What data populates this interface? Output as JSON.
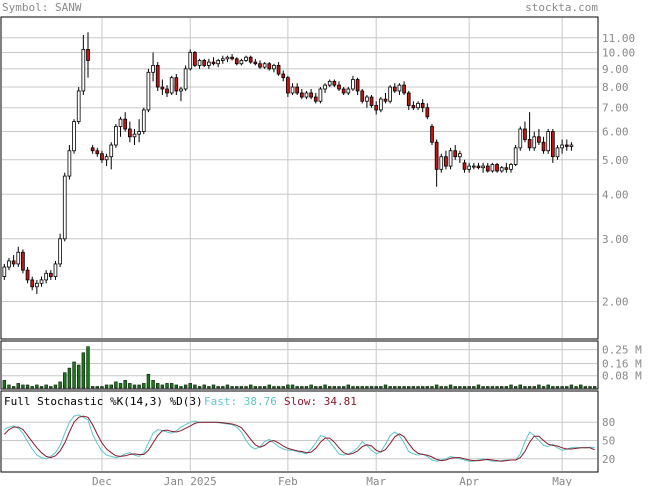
{
  "header": {
    "symbol_label": "Symbol: SANW",
    "brand": "stockta.com"
  },
  "colors": {
    "up": "#ffffff",
    "down": "#cc1111",
    "volume": "#1a7a1a",
    "fast": "#5bc8c8",
    "slow": "#8b1a2b",
    "grid": "#c8c8c8",
    "axis_text": "#888888"
  },
  "price_panel": {
    "scale": "log",
    "yticks": [
      "11.00",
      "10.00",
      "9.00",
      "8.00",
      "7.00",
      "6.00",
      "5.00",
      "4.00",
      "3.00",
      "2.00"
    ],
    "yvalues": [
      11,
      10,
      9,
      8,
      7,
      6,
      5,
      4,
      3,
      2
    ],
    "ylim": [
      1.58,
      12.5
    ]
  },
  "volume_panel": {
    "yticks": [
      "0.25 M",
      "0.16 M",
      "0.08 M"
    ],
    "yvalues": [
      0.25,
      0.16,
      0.08
    ],
    "ylim": [
      0,
      0.3
    ]
  },
  "stoch_panel": {
    "title": "Full Stochastic %K(14,3) %D(3)",
    "fast_label": "Fast: 38.76",
    "slow_label": "Slow: 34.81",
    "yticks": [
      "80",
      "50",
      "20"
    ],
    "yvalues": [
      80,
      50,
      20
    ],
    "ylim": [
      0,
      100
    ]
  },
  "x_axis": {
    "labels": [
      "Dec",
      "Jan 2025",
      "Feb",
      "Mar",
      "Apr",
      "May"
    ],
    "positions": [
      21,
      40,
      61,
      80,
      100,
      120
    ]
  },
  "chart_data": {
    "type": "candlestick",
    "n": 128,
    "candles": [
      [
        2.35,
        2.55,
        2.3,
        2.5
      ],
      [
        2.5,
        2.65,
        2.45,
        2.6
      ],
      [
        2.6,
        2.7,
        2.5,
        2.55
      ],
      [
        2.55,
        2.85,
        2.5,
        2.75
      ],
      [
        2.75,
        2.8,
        2.4,
        2.45
      ],
      [
        2.45,
        2.5,
        2.25,
        2.3
      ],
      [
        2.3,
        2.35,
        2.15,
        2.2
      ],
      [
        2.2,
        2.3,
        2.1,
        2.25
      ],
      [
        2.25,
        2.35,
        2.2,
        2.3
      ],
      [
        2.3,
        2.45,
        2.25,
        2.4
      ],
      [
        2.4,
        2.45,
        2.3,
        2.35
      ],
      [
        2.35,
        2.6,
        2.3,
        2.55
      ],
      [
        2.55,
        3.1,
        2.5,
        3.0
      ],
      [
        3.0,
        4.6,
        2.95,
        4.5
      ],
      [
        4.5,
        5.5,
        4.4,
        5.3
      ],
      [
        5.3,
        6.5,
        5.2,
        6.4
      ],
      [
        6.4,
        8.0,
        6.3,
        7.8
      ],
      [
        7.8,
        11.2,
        7.6,
        10.2
      ],
      [
        10.2,
        11.4,
        8.5,
        9.5
      ],
      [
        5.4,
        5.5,
        5.2,
        5.3
      ],
      [
        5.3,
        5.4,
        5.1,
        5.2
      ],
      [
        5.2,
        5.3,
        4.9,
        5.0
      ],
      [
        5.0,
        5.2,
        4.8,
        5.1
      ],
      [
        5.1,
        5.6,
        4.7,
        5.5
      ],
      [
        5.5,
        6.3,
        5.4,
        6.2
      ],
      [
        6.2,
        6.6,
        5.8,
        6.5
      ],
      [
        6.5,
        6.8,
        6.0,
        6.1
      ],
      [
        6.1,
        6.4,
        5.6,
        5.8
      ],
      [
        5.8,
        6.1,
        5.5,
        5.9
      ],
      [
        5.9,
        6.5,
        5.6,
        6.0
      ],
      [
        6.0,
        7.0,
        5.9,
        6.9
      ],
      [
        6.9,
        9.0,
        6.8,
        8.8
      ],
      [
        8.8,
        10.0,
        8.3,
        9.2
      ],
      [
        9.2,
        9.4,
        7.8,
        8.0
      ],
      [
        8.0,
        8.4,
        7.6,
        7.9
      ],
      [
        7.9,
        8.1,
        7.5,
        7.7
      ],
      [
        7.7,
        8.6,
        7.6,
        8.5
      ],
      [
        8.5,
        8.7,
        7.6,
        7.8
      ],
      [
        7.8,
        8.0,
        7.3,
        7.9
      ],
      [
        7.9,
        9.2,
        7.8,
        9.0
      ],
      [
        9.0,
        10.2,
        8.9,
        10.0
      ],
      [
        10.0,
        10.1,
        9.1,
        9.2
      ],
      [
        9.2,
        9.6,
        9.0,
        9.5
      ],
      [
        9.5,
        9.6,
        9.1,
        9.2
      ],
      [
        9.2,
        9.6,
        9.0,
        9.4
      ],
      [
        9.4,
        9.7,
        9.2,
        9.3
      ],
      [
        9.3,
        9.6,
        9.1,
        9.5
      ],
      [
        9.5,
        9.8,
        9.3,
        9.6
      ],
      [
        9.6,
        9.8,
        9.4,
        9.7
      ],
      [
        9.7,
        9.9,
        9.5,
        9.6
      ],
      [
        9.6,
        9.7,
        9.2,
        9.3
      ],
      [
        9.3,
        9.6,
        9.2,
        9.5
      ],
      [
        9.5,
        9.8,
        9.4,
        9.7
      ],
      [
        9.7,
        9.8,
        9.3,
        9.4
      ],
      [
        9.4,
        9.6,
        9.2,
        9.3
      ],
      [
        9.3,
        9.5,
        9.0,
        9.1
      ],
      [
        9.1,
        9.4,
        9.0,
        9.3
      ],
      [
        9.3,
        9.4,
        8.9,
        9.0
      ],
      [
        9.0,
        9.3,
        8.8,
        9.2
      ],
      [
        9.2,
        9.4,
        8.6,
        8.7
      ],
      [
        8.7,
        8.9,
        8.3,
        8.5
      ],
      [
        8.5,
        8.6,
        7.5,
        7.7
      ],
      [
        7.7,
        8.2,
        7.6,
        8.0
      ],
      [
        8.0,
        8.2,
        7.6,
        7.7
      ],
      [
        7.7,
        7.9,
        7.4,
        7.5
      ],
      [
        7.5,
        7.8,
        7.4,
        7.7
      ],
      [
        7.7,
        7.9,
        7.4,
        7.5
      ],
      [
        7.5,
        7.7,
        7.2,
        7.3
      ],
      [
        7.3,
        8.0,
        7.2,
        7.9
      ],
      [
        7.9,
        8.2,
        7.7,
        8.1
      ],
      [
        8.1,
        8.4,
        8.0,
        8.3
      ],
      [
        8.3,
        8.4,
        8.0,
        8.1
      ],
      [
        8.1,
        8.3,
        7.8,
        7.9
      ],
      [
        7.9,
        8.0,
        7.6,
        7.7
      ],
      [
        7.7,
        8.0,
        7.6,
        7.9
      ],
      [
        7.9,
        8.6,
        7.8,
        8.4
      ],
      [
        8.4,
        8.5,
        7.6,
        7.8
      ],
      [
        7.8,
        7.9,
        7.2,
        7.3
      ],
      [
        7.3,
        7.6,
        7.0,
        7.5
      ],
      [
        7.5,
        7.6,
        7.0,
        7.1
      ],
      [
        7.1,
        7.3,
        6.7,
        6.9
      ],
      [
        6.9,
        7.5,
        6.8,
        7.4
      ],
      [
        7.4,
        7.7,
        7.2,
        7.3
      ],
      [
        7.3,
        8.1,
        7.2,
        8.0
      ],
      [
        8.0,
        8.2,
        7.7,
        7.8
      ],
      [
        7.8,
        8.2,
        7.6,
        8.1
      ],
      [
        8.1,
        8.3,
        7.6,
        7.7
      ],
      [
        7.7,
        7.8,
        6.9,
        7.1
      ],
      [
        7.1,
        7.3,
        6.9,
        7.0
      ],
      [
        7.0,
        7.3,
        6.9,
        7.2
      ],
      [
        7.2,
        7.4,
        6.8,
        7.0
      ],
      [
        7.0,
        7.2,
        6.5,
        6.6
      ],
      [
        6.2,
        6.3,
        5.5,
        5.6
      ],
      [
        5.6,
        5.7,
        4.2,
        4.7
      ],
      [
        4.7,
        5.2,
        4.6,
        5.1
      ],
      [
        5.1,
        5.3,
        4.7,
        4.8
      ],
      [
        4.8,
        5.4,
        4.7,
        5.3
      ],
      [
        5.3,
        5.5,
        5.0,
        5.1
      ],
      [
        5.1,
        5.3,
        4.9,
        5.2
      ],
      [
        4.9,
        5.0,
        4.6,
        4.7
      ],
      [
        4.7,
        4.9,
        4.6,
        4.8
      ],
      [
        4.8,
        4.9,
        4.7,
        4.8
      ],
      [
        4.8,
        4.9,
        4.7,
        4.75
      ],
      [
        4.75,
        4.9,
        4.6,
        4.8
      ],
      [
        4.8,
        4.9,
        4.6,
        4.65
      ],
      [
        4.65,
        4.9,
        4.6,
        4.85
      ],
      [
        4.85,
        4.9,
        4.6,
        4.65
      ],
      [
        4.65,
        4.8,
        4.6,
        4.75
      ],
      [
        4.75,
        4.9,
        4.6,
        4.7
      ],
      [
        4.7,
        4.9,
        4.6,
        4.85
      ],
      [
        4.85,
        5.5,
        4.8,
        5.4
      ],
      [
        5.4,
        6.2,
        5.3,
        6.1
      ],
      [
        6.1,
        6.4,
        5.6,
        5.7
      ],
      [
        5.7,
        6.8,
        5.3,
        5.4
      ],
      [
        5.4,
        6.0,
        5.3,
        5.8
      ],
      [
        5.8,
        6.1,
        5.5,
        5.6
      ],
      [
        5.6,
        5.8,
        5.2,
        5.3
      ],
      [
        5.3,
        6.1,
        5.2,
        6.0
      ],
      [
        6.0,
        6.1,
        4.9,
        5.1
      ],
      [
        5.1,
        5.5,
        5.0,
        5.4
      ],
      [
        5.4,
        5.7,
        5.2,
        5.5
      ],
      [
        5.5,
        5.7,
        5.3,
        5.45
      ],
      [
        5.45,
        5.6,
        5.3,
        5.5
      ]
    ],
    "volume": [
      0.05,
      0.02,
      0.01,
      0.03,
      0.02,
      0.02,
      0.01,
      0.02,
      0.01,
      0.02,
      0.01,
      0.02,
      0.04,
      0.1,
      0.13,
      0.17,
      0.15,
      0.23,
      0.27,
      0.01,
      0.01,
      0.01,
      0.02,
      0.02,
      0.04,
      0.03,
      0.05,
      0.03,
      0.02,
      0.02,
      0.03,
      0.09,
      0.05,
      0.03,
      0.02,
      0.03,
      0.03,
      0.02,
      0.01,
      0.02,
      0.03,
      0.02,
      0.01,
      0.02,
      0.01,
      0.02,
      0.01,
      0.01,
      0.02,
      0.01,
      0.01,
      0.01,
      0.01,
      0.02,
      0.01,
      0.01,
      0.01,
      0.02,
      0.01,
      0.01,
      0.01,
      0.02,
      0.02,
      0.01,
      0.01,
      0.01,
      0.02,
      0.01,
      0.01,
      0.02,
      0.01,
      0.01,
      0.01,
      0.01,
      0.02,
      0.01,
      0.01,
      0.01,
      0.01,
      0.01,
      0.01,
      0.01,
      0.02,
      0.01,
      0.01,
      0.01,
      0.01,
      0.01,
      0.01,
      0.01,
      0.01,
      0.01,
      0.01,
      0.02,
      0.01,
      0.01,
      0.02,
      0.01,
      0.01,
      0.01,
      0.01,
      0.01,
      0.02,
      0.01,
      0.01,
      0.01,
      0.01,
      0.01,
      0.01,
      0.02,
      0.01,
      0.02,
      0.01,
      0.01,
      0.01,
      0.02,
      0.01,
      0.02,
      0.01,
      0.01,
      0.01,
      0.01,
      0.02,
      0.01,
      0.02,
      0.01,
      0.01,
      0.01
    ],
    "fast": [
      68,
      72,
      74,
      70,
      62,
      48,
      36,
      26,
      22,
      20,
      24,
      30,
      42,
      62,
      80,
      90,
      92,
      88,
      84,
      60,
      45,
      33,
      26,
      24,
      22,
      24,
      28,
      30,
      26,
      24,
      30,
      46,
      62,
      68,
      66,
      64,
      62,
      66,
      72,
      76,
      80,
      82,
      80,
      80,
      80,
      80,
      79,
      78,
      77,
      76,
      72,
      64,
      50,
      40,
      36,
      40,
      48,
      52,
      46,
      40,
      36,
      34,
      34,
      32,
      30,
      28,
      36,
      46,
      58,
      56,
      48,
      38,
      28,
      26,
      28,
      32,
      38,
      48,
      42,
      34,
      28,
      32,
      44,
      58,
      64,
      58,
      46,
      32,
      28,
      26,
      28,
      24,
      18,
      16,
      18,
      20,
      24,
      22,
      20,
      18,
      16,
      16,
      18,
      20,
      18,
      16,
      16,
      17,
      18,
      18,
      18,
      28,
      48,
      64,
      58,
      50,
      42,
      40,
      44,
      38,
      34,
      36,
      38,
      39,
      38,
      38,
      39,
      38.76
    ],
    "slow": [
      60,
      68,
      72,
      72,
      68,
      58,
      48,
      38,
      30,
      24,
      22,
      25,
      33,
      46,
      64,
      80,
      88,
      90,
      88,
      76,
      60,
      46,
      36,
      30,
      25,
      24,
      25,
      27,
      28,
      27,
      27,
      34,
      46,
      58,
      66,
      67,
      65,
      64,
      66,
      70,
      74,
      78,
      80,
      80,
      80,
      80,
      80,
      79,
      78,
      77,
      75,
      71,
      62,
      52,
      43,
      39,
      42,
      48,
      50,
      46,
      41,
      37,
      35,
      33,
      32,
      30,
      31,
      37,
      47,
      54,
      54,
      47,
      38,
      30,
      27,
      29,
      33,
      40,
      43,
      41,
      34,
      31,
      35,
      45,
      56,
      61,
      56,
      45,
      35,
      29,
      27,
      26,
      23,
      19,
      17,
      18,
      21,
      22,
      22,
      20,
      18,
      17,
      17,
      18,
      19,
      18,
      17,
      16,
      17,
      18,
      18,
      22,
      32,
      47,
      57,
      57,
      50,
      44,
      42,
      41,
      38,
      36,
      36,
      37,
      38,
      38,
      38,
      34.81
    ]
  }
}
